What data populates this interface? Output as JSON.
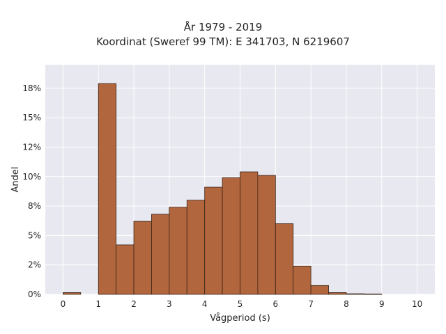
{
  "chart_data": {
    "type": "bar",
    "title_lines": [
      "År 1979 - 2019",
      "Koordinat (Sweref 99 TM): E 341703, N 6219607"
    ],
    "xlabel": "Vågperiod (s)",
    "ylabel": "Andel",
    "xlim": [
      -0.5,
      10.5
    ],
    "ylim": [
      0,
      0.195
    ],
    "x_ticks": [
      "0",
      "1",
      "2",
      "3",
      "4",
      "5",
      "6",
      "7",
      "8",
      "9",
      "10"
    ],
    "y_ticks": [
      {
        "value": 0.0,
        "label": "0%"
      },
      {
        "value": 0.025,
        "label": "2%"
      },
      {
        "value": 0.05,
        "label": "5%"
      },
      {
        "value": 0.075,
        "label": "8%"
      },
      {
        "value": 0.1,
        "label": "10%"
      },
      {
        "value": 0.125,
        "label": "12%"
      },
      {
        "value": 0.15,
        "label": "15%"
      },
      {
        "value": 0.175,
        "label": "18%"
      }
    ],
    "bin_width": 0.5,
    "bins": [
      {
        "start": 0.0,
        "value": 0.0015
      },
      {
        "start": 0.5,
        "value": 0.0
      },
      {
        "start": 1.0,
        "value": 0.179
      },
      {
        "start": 1.5,
        "value": 0.042
      },
      {
        "start": 2.0,
        "value": 0.062
      },
      {
        "start": 2.5,
        "value": 0.068
      },
      {
        "start": 3.0,
        "value": 0.074
      },
      {
        "start": 3.5,
        "value": 0.08
      },
      {
        "start": 4.0,
        "value": 0.091
      },
      {
        "start": 4.5,
        "value": 0.099
      },
      {
        "start": 5.0,
        "value": 0.104
      },
      {
        "start": 5.5,
        "value": 0.101
      },
      {
        "start": 6.0,
        "value": 0.06
      },
      {
        "start": 6.5,
        "value": 0.024
      },
      {
        "start": 7.0,
        "value": 0.0075
      },
      {
        "start": 7.5,
        "value": 0.0015
      },
      {
        "start": 8.0,
        "value": 0.0005
      },
      {
        "start": 8.5,
        "value": 0.0003
      }
    ],
    "grid": true,
    "legend": "none",
    "colors": {
      "bar_fill": "#b2663d",
      "bar_edge": "#3a2418",
      "plot_bg": "#e8e8f0",
      "grid": "#ffffff"
    }
  }
}
